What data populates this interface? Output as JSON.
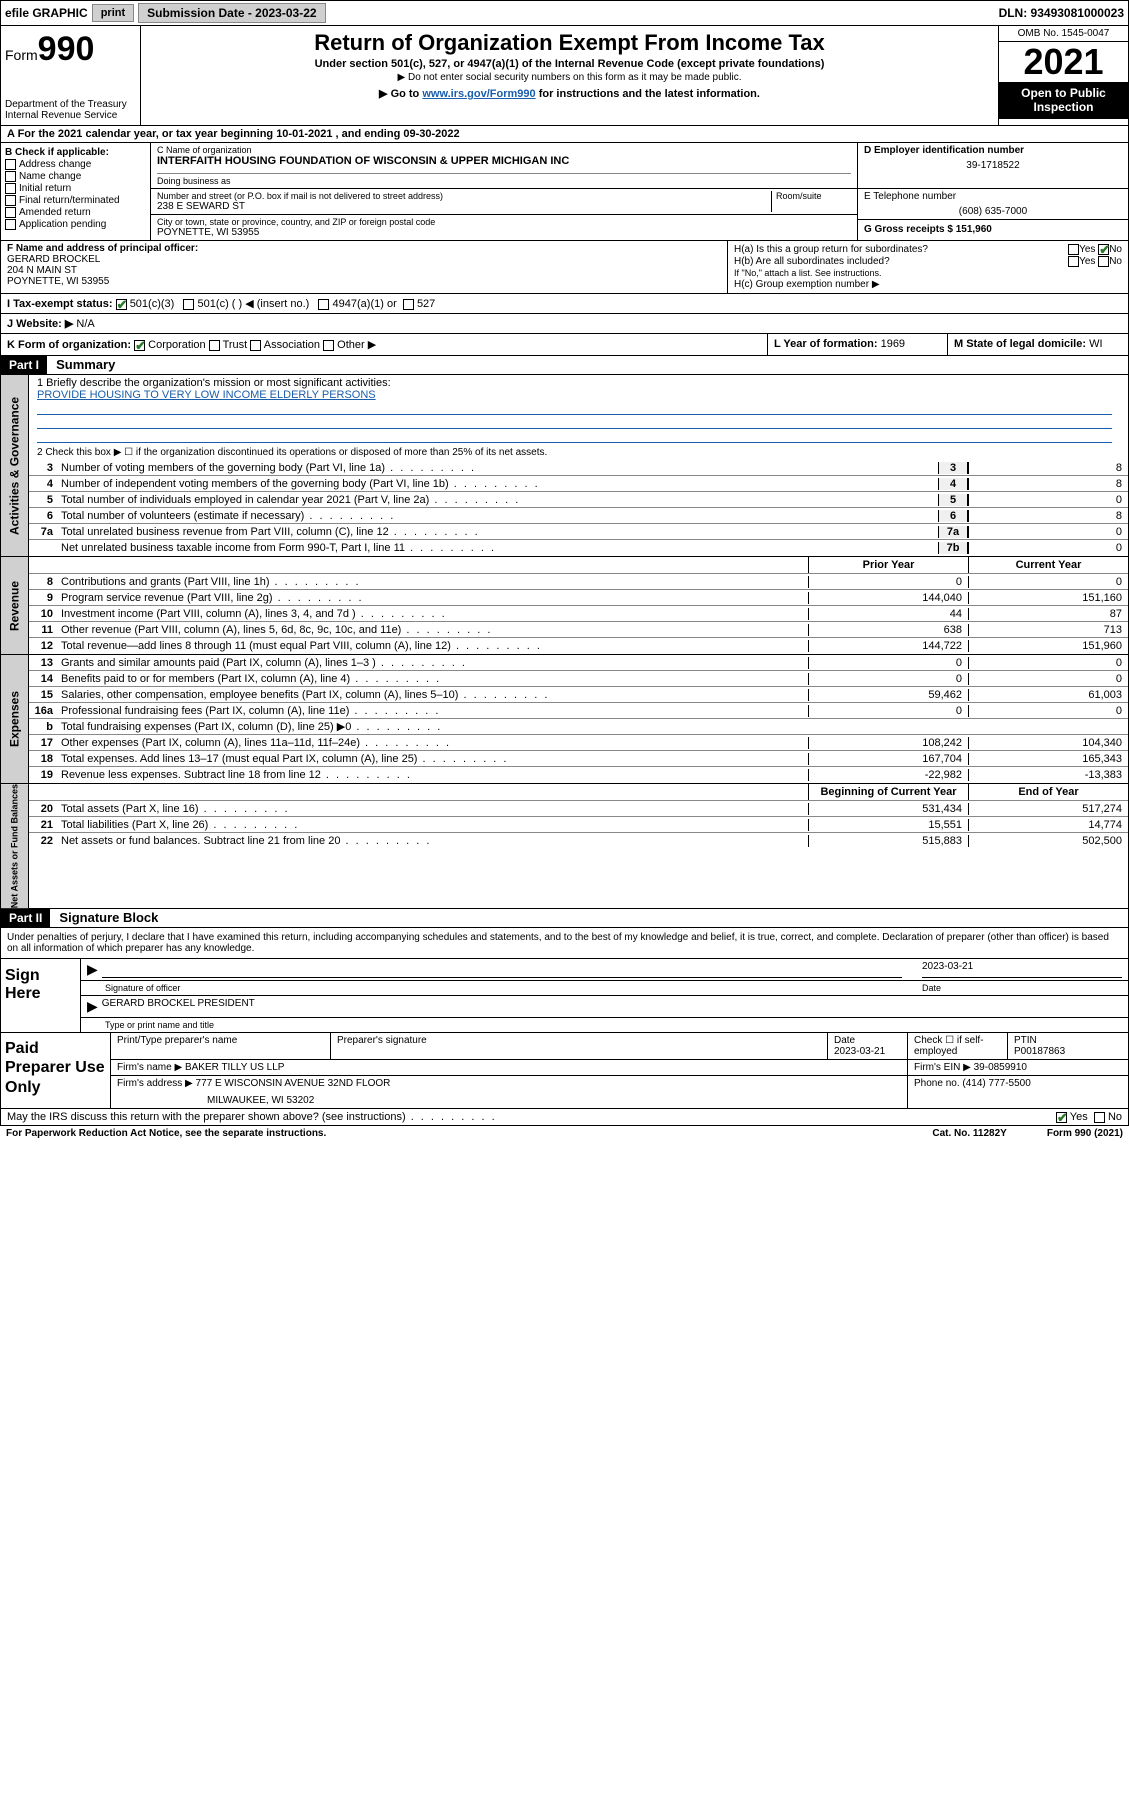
{
  "topbar": {
    "efile": "efile GRAPHIC",
    "print": "print",
    "submission_label": "Submission Date - 2023-03-22",
    "dln": "DLN: 93493081000023"
  },
  "header": {
    "form_prefix": "Form",
    "form_number": "990",
    "dept": "Department of the Treasury",
    "irs": "Internal Revenue Service",
    "title": "Return of Organization Exempt From Income Tax",
    "sub1": "Under section 501(c), 527, or 4947(a)(1) of the Internal Revenue Code (except private foundations)",
    "sub2": "▶ Do not enter social security numbers on this form as it may be made public.",
    "sub3_prefix": "▶ Go to ",
    "sub3_link": "www.irs.gov/Form990",
    "sub3_suffix": " for instructions and the latest information.",
    "omb": "OMB No. 1545-0047",
    "year": "2021",
    "open_public": "Open to Public Inspection"
  },
  "row_a": "A For the 2021 calendar year, or tax year beginning 10-01-2021   , and ending 09-30-2022",
  "section_b": {
    "label": "B Check if applicable:",
    "opts": [
      "Address change",
      "Name change",
      "Initial return",
      "Final return/terminated",
      "Amended return",
      "Application pending"
    ]
  },
  "section_c": {
    "name_label": "C Name of organization",
    "name": "INTERFAITH HOUSING FOUNDATION OF WISCONSIN & UPPER MICHIGAN INC",
    "dba_label": "Doing business as",
    "street_label": "Number and street (or P.O. box if mail is not delivered to street address)",
    "room_label": "Room/suite",
    "street": "238 E SEWARD ST",
    "city_label": "City or town, state or province, country, and ZIP or foreign postal code",
    "city": "POYNETTE, WI  53955"
  },
  "section_d": {
    "label": "D Employer identification number",
    "ein": "39-1718522"
  },
  "section_e": {
    "label": "E Telephone number",
    "phone": "(608) 635-7000"
  },
  "section_g": {
    "label": "G Gross receipts $",
    "amount": "151,960"
  },
  "section_f": {
    "label": "F Name and address of principal officer:",
    "name": "GERARD BROCKEL",
    "street": "204 N MAIN ST",
    "city": "POYNETTE, WI  53955"
  },
  "section_h": {
    "h_a": "H(a)  Is this a group return for subordinates?",
    "h_a_yes": "Yes",
    "h_a_no": "No",
    "h_b": "H(b)  Are all subordinates included?",
    "h_b_note": "If \"No,\" attach a list. See instructions.",
    "h_c": "H(c)  Group exemption number ▶"
  },
  "row_i": {
    "label": "I   Tax-exempt status:",
    "opt1": "501(c)(3)",
    "opt2": "501(c) (  ) ◀ (insert no.)",
    "opt3": "4947(a)(1) or",
    "opt4": "527"
  },
  "row_j": {
    "label": "J   Website: ▶",
    "value": "N/A"
  },
  "row_k": {
    "label": "K Form of organization:",
    "opts": [
      "Corporation",
      "Trust",
      "Association",
      "Other ▶"
    ],
    "l_label": "L Year of formation:",
    "l_val": "1969",
    "m_label": "M State of legal domicile:",
    "m_val": "WI"
  },
  "part1": {
    "header": "Part I",
    "title": "Summary",
    "line1_label": "1   Briefly describe the organization's mission or most significant activities:",
    "line1_mission": "PROVIDE HOUSING TO VERY LOW INCOME ELDERLY PERSONS",
    "line2": "2   Check this box ▶ ☐  if the organization discontinued its operations or disposed of more than 25% of its net assets.",
    "gov_lines": [
      {
        "n": "3",
        "d": "Number of voting members of the governing body (Part VI, line 1a)",
        "box": "3",
        "v": "8"
      },
      {
        "n": "4",
        "d": "Number of independent voting members of the governing body (Part VI, line 1b)",
        "box": "4",
        "v": "8"
      },
      {
        "n": "5",
        "d": "Total number of individuals employed in calendar year 2021 (Part V, line 2a)",
        "box": "5",
        "v": "0"
      },
      {
        "n": "6",
        "d": "Total number of volunteers (estimate if necessary)",
        "box": "6",
        "v": "8"
      },
      {
        "n": "7a",
        "d": "Total unrelated business revenue from Part VIII, column (C), line 12",
        "box": "7a",
        "v": "0"
      },
      {
        "n": "",
        "d": "Net unrelated business taxable income from Form 990-T, Part I, line 11",
        "box": "7b",
        "v": "0"
      }
    ],
    "col_headers": {
      "prior": "Prior Year",
      "current": "Current Year"
    },
    "rev_lines": [
      {
        "n": "8",
        "d": "Contributions and grants (Part VIII, line 1h)",
        "p": "0",
        "c": "0"
      },
      {
        "n": "9",
        "d": "Program service revenue (Part VIII, line 2g)",
        "p": "144,040",
        "c": "151,160"
      },
      {
        "n": "10",
        "d": "Investment income (Part VIII, column (A), lines 3, 4, and 7d )",
        "p": "44",
        "c": "87"
      },
      {
        "n": "11",
        "d": "Other revenue (Part VIII, column (A), lines 5, 6d, 8c, 9c, 10c, and 11e)",
        "p": "638",
        "c": "713"
      },
      {
        "n": "12",
        "d": "Total revenue—add lines 8 through 11 (must equal Part VIII, column (A), line 12)",
        "p": "144,722",
        "c": "151,960"
      }
    ],
    "exp_lines": [
      {
        "n": "13",
        "d": "Grants and similar amounts paid (Part IX, column (A), lines 1–3 )",
        "p": "0",
        "c": "0"
      },
      {
        "n": "14",
        "d": "Benefits paid to or for members (Part IX, column (A), line 4)",
        "p": "0",
        "c": "0"
      },
      {
        "n": "15",
        "d": "Salaries, other compensation, employee benefits (Part IX, column (A), lines 5–10)",
        "p": "59,462",
        "c": "61,003"
      },
      {
        "n": "16a",
        "d": "Professional fundraising fees (Part IX, column (A), line 11e)",
        "p": "0",
        "c": "0"
      },
      {
        "n": "b",
        "d": "Total fundraising expenses (Part IX, column (D), line 25) ▶0",
        "p": "",
        "c": "",
        "shaded": true
      },
      {
        "n": "17",
        "d": "Other expenses (Part IX, column (A), lines 11a–11d, 11f–24e)",
        "p": "108,242",
        "c": "104,340"
      },
      {
        "n": "18",
        "d": "Total expenses. Add lines 13–17 (must equal Part IX, column (A), line 25)",
        "p": "167,704",
        "c": "165,343"
      },
      {
        "n": "19",
        "d": "Revenue less expenses. Subtract line 18 from line 12",
        "p": "-22,982",
        "c": "-13,383"
      }
    ],
    "bal_headers": {
      "beg": "Beginning of Current Year",
      "end": "End of Year"
    },
    "bal_lines": [
      {
        "n": "20",
        "d": "Total assets (Part X, line 16)",
        "p": "531,434",
        "c": "517,274"
      },
      {
        "n": "21",
        "d": "Total liabilities (Part X, line 26)",
        "p": "15,551",
        "c": "14,774"
      },
      {
        "n": "22",
        "d": "Net assets or fund balances. Subtract line 21 from line 20",
        "p": "515,883",
        "c": "502,500"
      }
    ],
    "side_gov": "Activities & Governance",
    "side_rev": "Revenue",
    "side_exp": "Expenses",
    "side_bal": "Net Assets or Fund Balances"
  },
  "part2": {
    "header": "Part II",
    "title": "Signature Block",
    "declaration": "Under penalties of perjury, I declare that I have examined this return, including accompanying schedules and statements, and to the best of my knowledge and belief, it is true, correct, and complete. Declaration of preparer (other than officer) is based on all information of which preparer has any knowledge.",
    "sign_here": "Sign Here",
    "sig_officer": "Signature of officer",
    "sig_date": "Date",
    "sig_date_val": "2023-03-21",
    "officer_name": "GERARD BROCKEL  PRESIDENT",
    "officer_label": "Type or print name and title",
    "paid_prep": "Paid Preparer Use Only",
    "prep_name_label": "Print/Type preparer's name",
    "prep_sig_label": "Preparer's signature",
    "prep_date_label": "Date",
    "prep_date": "2023-03-21",
    "prep_check_label": "Check ☐ if self-employed",
    "ptin_label": "PTIN",
    "ptin": "P00187863",
    "firm_name_label": "Firm's name   ▶",
    "firm_name": "BAKER TILLY US LLP",
    "firm_ein_label": "Firm's EIN ▶",
    "firm_ein": "39-0859910",
    "firm_addr_label": "Firm's address ▶",
    "firm_addr1": "777 E WISCONSIN AVENUE 32ND FLOOR",
    "firm_addr2": "MILWAUKEE, WI  53202",
    "firm_phone_label": "Phone no.",
    "firm_phone": "(414) 777-5500",
    "may_irs": "May the IRS discuss this return with the preparer shown above? (see instructions)",
    "yes": "Yes",
    "no": "No"
  },
  "footer": {
    "pra": "For Paperwork Reduction Act Notice, see the separate instructions.",
    "cat": "Cat. No. 11282Y",
    "form": "Form 990 (2021)"
  }
}
